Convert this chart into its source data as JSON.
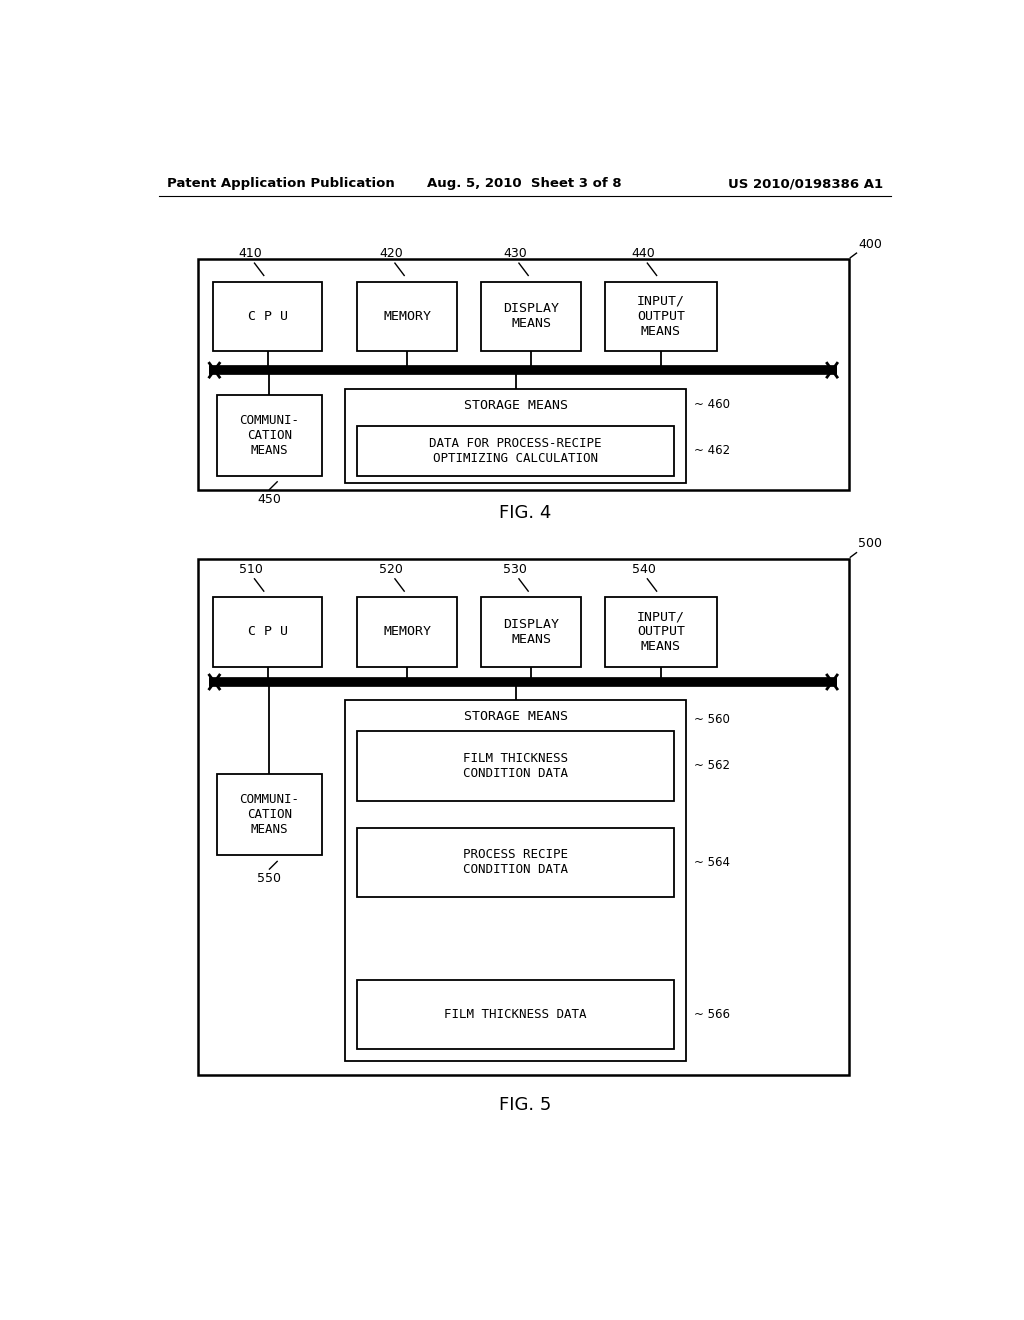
{
  "bg_color": "#ffffff",
  "header_left": "Patent Application Publication",
  "header_mid": "Aug. 5, 2010  Sheet 3 of 8",
  "header_right": "US 2010/0198386 A1",
  "fig4_label": "FIG. 4",
  "fig5_label": "FIG. 5"
}
